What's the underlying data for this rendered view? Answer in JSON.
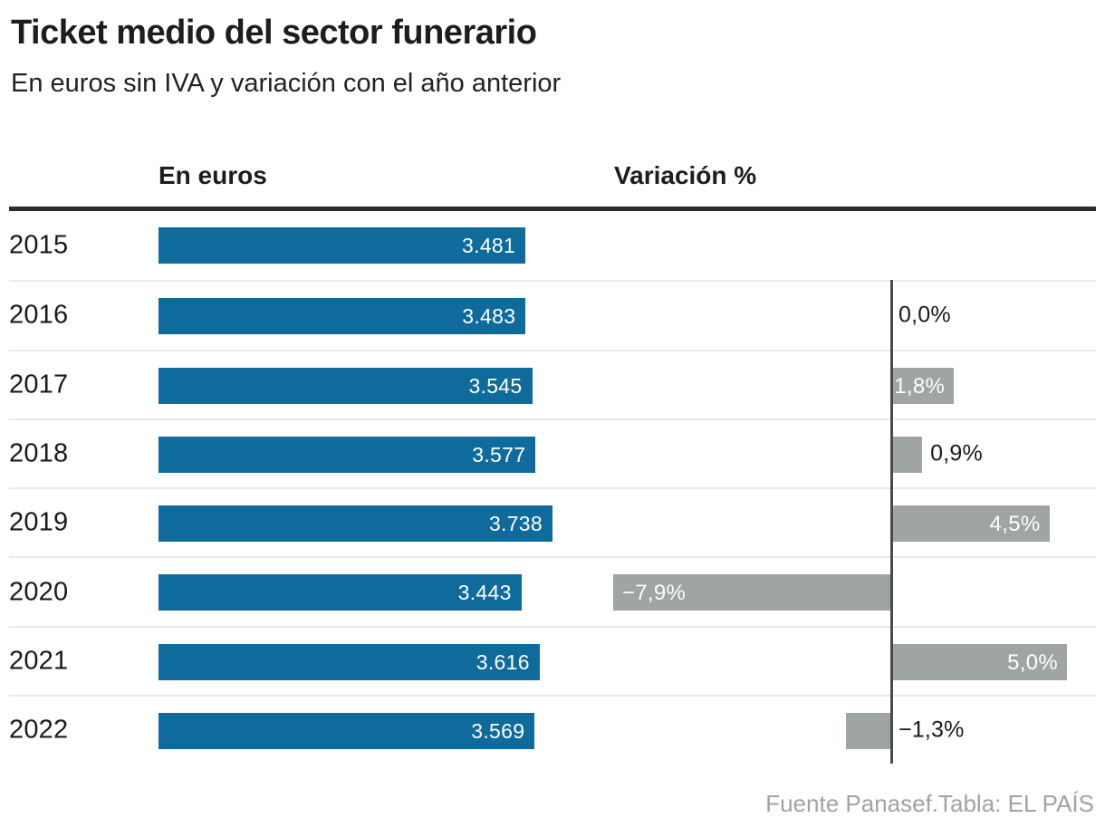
{
  "title": "Ticket medio del sector funerario",
  "subtitle": "En euros sin IVA y variación con el año anterior",
  "columns": {
    "euros_header": "En euros",
    "variation_header": "Variación %"
  },
  "footer": "Fuente Panasef.Tabla: EL PAÍS",
  "colors": {
    "euro_bar": "#0e6b9c",
    "variation_bar": "#9ea5a3",
    "axis_line": "#4a4a4a",
    "header_rule": "#2d2d2d",
    "row_separator": "#ebebeb",
    "bar_label_text": "#ffffff",
    "outside_label_text": "#1a1a1a",
    "footer_text": "#a2a2a2"
  },
  "chart_data": {
    "type": "bar",
    "title": "Ticket medio del sector funerario",
    "subtitle": "En euros sin IVA y variación con el año anterior",
    "categories": [
      "2015",
      "2016",
      "2017",
      "2018",
      "2019",
      "2020",
      "2021",
      "2022"
    ],
    "series": [
      {
        "name": "En euros",
        "values": [
          3481,
          3483,
          3545,
          3577,
          3738,
          3443,
          3616,
          3569
        ],
        "labels": [
          "3.481",
          "3.483",
          "3.545",
          "3.577",
          "3.738",
          "3.443",
          "3.616",
          "3.569"
        ],
        "xlim": [
          0,
          3738
        ]
      },
      {
        "name": "Variación %",
        "values": [
          null,
          0.0,
          1.8,
          0.9,
          4.5,
          -7.9,
          5.0,
          -1.3
        ],
        "labels": [
          "",
          "0,0%",
          "1,8%",
          "0,9%",
          "4,5%",
          "−7,9%",
          "5,0%",
          "−1,3%"
        ],
        "xlim": [
          -7.9,
          5.9
        ]
      }
    ],
    "grid": "row separators only, zero axis line in variation column",
    "legend": "none",
    "source": "Fuente Panasef.Tabla: EL PAÍS"
  }
}
